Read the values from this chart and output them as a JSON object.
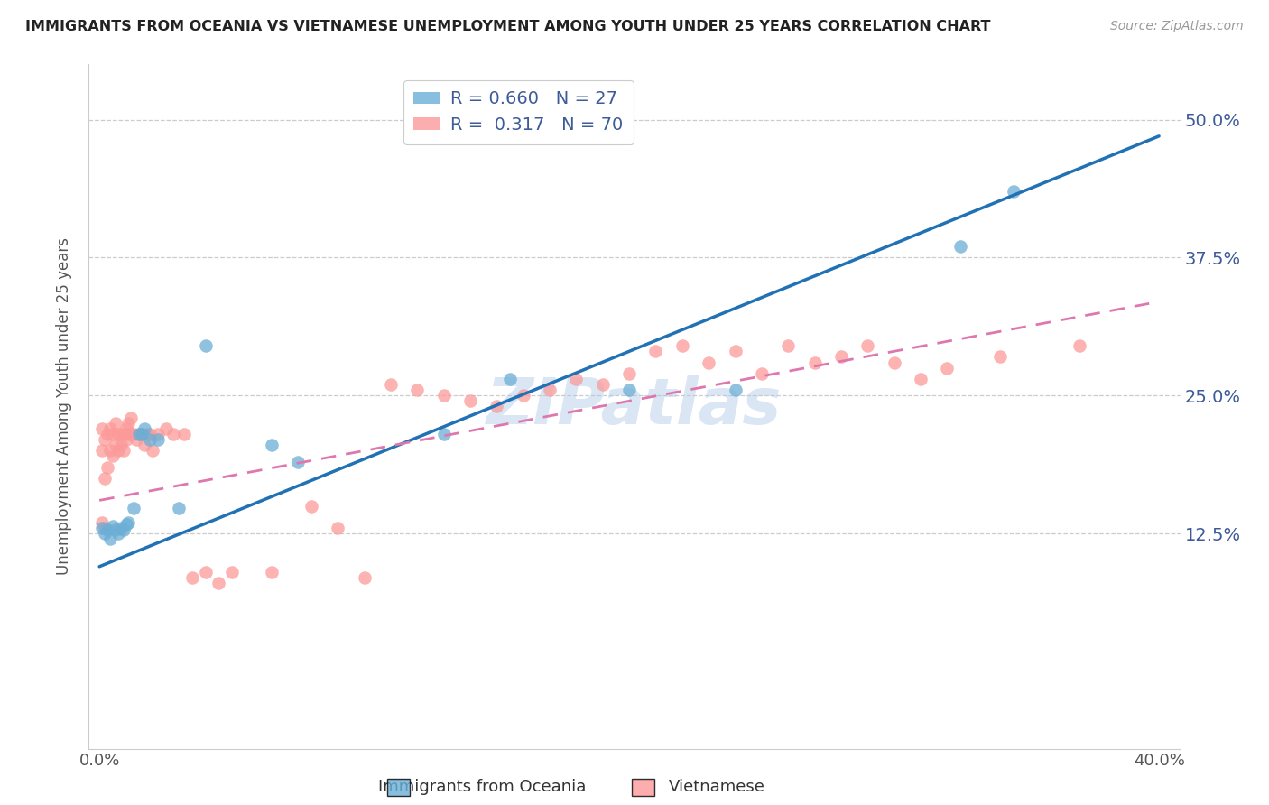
{
  "title": "IMMIGRANTS FROM OCEANIA VS VIETNAMESE UNEMPLOYMENT AMONG YOUTH UNDER 25 YEARS CORRELATION CHART",
  "source": "Source: ZipAtlas.com",
  "ylabel": "Unemployment Among Youth under 25 years",
  "ytick_labels": [
    "12.5%",
    "25.0%",
    "37.5%",
    "50.0%"
  ],
  "ytick_values": [
    0.125,
    0.25,
    0.375,
    0.5
  ],
  "xlim": [
    0.0,
    0.4
  ],
  "ylim": [
    -0.07,
    0.55
  ],
  "legend_oceania_R": "0.660",
  "legend_oceania_N": "27",
  "legend_vietnamese_R": "0.317",
  "legend_vietnamese_N": "70",
  "color_oceania": "#6baed6",
  "color_vietnamese": "#fb9a99",
  "color_line_oceania": "#2171b5",
  "color_line_vietnamese": "#de77ae",
  "watermark": "ZIPatlas",
  "oceania_x": [
    0.001,
    0.002,
    0.003,
    0.004,
    0.005,
    0.006,
    0.007,
    0.008,
    0.009,
    0.01,
    0.011,
    0.013,
    0.015,
    0.016,
    0.017,
    0.019,
    0.022,
    0.03,
    0.04,
    0.065,
    0.075,
    0.13,
    0.155,
    0.2,
    0.24,
    0.325,
    0.345
  ],
  "oceania_y": [
    0.13,
    0.125,
    0.128,
    0.12,
    0.132,
    0.128,
    0.125,
    0.13,
    0.128,
    0.133,
    0.135,
    0.148,
    0.215,
    0.215,
    0.22,
    0.21,
    0.21,
    0.148,
    0.295,
    0.205,
    0.19,
    0.215,
    0.265,
    0.255,
    0.255,
    0.385,
    0.435
  ],
  "vietnamese_x": [
    0.001,
    0.001,
    0.001,
    0.002,
    0.002,
    0.002,
    0.003,
    0.003,
    0.004,
    0.004,
    0.005,
    0.005,
    0.006,
    0.006,
    0.007,
    0.007,
    0.008,
    0.008,
    0.009,
    0.009,
    0.01,
    0.01,
    0.011,
    0.011,
    0.012,
    0.012,
    0.013,
    0.014,
    0.015,
    0.016,
    0.017,
    0.018,
    0.019,
    0.02,
    0.022,
    0.025,
    0.028,
    0.032,
    0.035,
    0.04,
    0.045,
    0.05,
    0.065,
    0.08,
    0.09,
    0.1,
    0.11,
    0.12,
    0.13,
    0.14,
    0.15,
    0.16,
    0.17,
    0.18,
    0.19,
    0.2,
    0.21,
    0.22,
    0.23,
    0.24,
    0.25,
    0.26,
    0.27,
    0.28,
    0.29,
    0.3,
    0.31,
    0.32,
    0.34,
    0.37
  ],
  "vietnamese_y": [
    0.135,
    0.2,
    0.22,
    0.13,
    0.175,
    0.21,
    0.185,
    0.215,
    0.2,
    0.22,
    0.195,
    0.215,
    0.205,
    0.225,
    0.2,
    0.215,
    0.205,
    0.215,
    0.2,
    0.215,
    0.21,
    0.22,
    0.215,
    0.225,
    0.215,
    0.23,
    0.215,
    0.21,
    0.215,
    0.215,
    0.205,
    0.215,
    0.215,
    0.2,
    0.215,
    0.22,
    0.215,
    0.215,
    0.085,
    0.09,
    0.08,
    0.09,
    0.09,
    0.15,
    0.13,
    0.085,
    0.26,
    0.255,
    0.25,
    0.245,
    0.24,
    0.25,
    0.255,
    0.265,
    0.26,
    0.27,
    0.29,
    0.295,
    0.28,
    0.29,
    0.27,
    0.295,
    0.28,
    0.285,
    0.295,
    0.28,
    0.265,
    0.275,
    0.285,
    0.295
  ],
  "background_color": "#ffffff",
  "grid_color": "#cccccc",
  "line_oceania_x0": 0.0,
  "line_oceania_y0": 0.095,
  "line_oceania_x1": 0.4,
  "line_oceania_y1": 0.485,
  "line_vietnamese_x0": 0.0,
  "line_vietnamese_y0": 0.155,
  "line_vietnamese_x1": 0.4,
  "line_vietnamese_y1": 0.335
}
